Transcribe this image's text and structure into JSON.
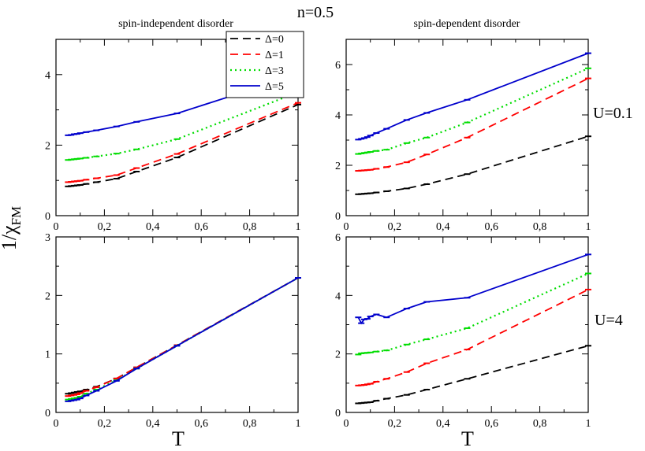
{
  "figure": {
    "top_title": "n=0.5",
    "column_titles": [
      "spin-independent disorder",
      "spin-dependent disorder"
    ],
    "row_labels": [
      "U=0.1",
      "U=4"
    ],
    "ylabel_main": "1/χ",
    "ylabel_sub": "FM",
    "xlabel": "T"
  },
  "colors": {
    "Δ=0": "#000000",
    "Δ=1": "#ff0000",
    "Δ=3": "#00dd00",
    "Δ=5": "#0000cc"
  },
  "chart_data": [
    {
      "type": "line",
      "panel": "top-left",
      "title": "spin-independent disorder",
      "xlim": [
        0,
        1
      ],
      "ylim": [
        0,
        5
      ],
      "xticks": [
        0,
        0.2,
        0.4,
        0.6,
        0.8,
        1
      ],
      "xtick_labels": [
        "0",
        "0,2",
        "0,4",
        "0,6",
        "0,8",
        "1"
      ],
      "yticks": [
        0,
        2,
        4
      ],
      "ytick_labels": [
        "0",
        "2",
        "4"
      ],
      "grid": false,
      "legend": {
        "placement": "top-right",
        "entries": [
          "Δ=0",
          "Δ=1",
          "Δ=3",
          "Δ=5"
        ]
      },
      "series": [
        {
          "name": "Δ=0",
          "style": "dashed",
          "x": [
            0.05,
            0.0625,
            0.075,
            0.0875,
            0.1,
            0.125,
            0.167,
            0.25,
            0.333,
            0.5,
            1.0
          ],
          "y": [
            0.83,
            0.84,
            0.85,
            0.86,
            0.87,
            0.9,
            0.95,
            1.05,
            1.25,
            1.65,
            3.15
          ]
        },
        {
          "name": "Δ=1",
          "style": "dashed",
          "x": [
            0.05,
            0.0625,
            0.075,
            0.0875,
            0.1,
            0.125,
            0.167,
            0.25,
            0.333,
            0.5,
            1.0
          ],
          "y": [
            0.95,
            0.96,
            0.97,
            0.98,
            0.99,
            1.02,
            1.06,
            1.15,
            1.35,
            1.75,
            3.2
          ]
        },
        {
          "name": "Δ=3",
          "style": "dotted",
          "x": [
            0.05,
            0.0625,
            0.075,
            0.0875,
            0.1,
            0.125,
            0.167,
            0.25,
            0.333,
            0.5,
            1.0
          ],
          "y": [
            1.58,
            1.59,
            1.6,
            1.61,
            1.62,
            1.64,
            1.68,
            1.76,
            1.88,
            2.17,
            3.5
          ]
        },
        {
          "name": "Δ=5",
          "style": "solid",
          "x": [
            0.05,
            0.0625,
            0.075,
            0.0875,
            0.1,
            0.125,
            0.167,
            0.25,
            0.333,
            0.5,
            1.0
          ],
          "y": [
            2.28,
            2.29,
            2.31,
            2.32,
            2.34,
            2.37,
            2.42,
            2.53,
            2.66,
            2.9,
            4.0
          ]
        }
      ]
    },
    {
      "type": "line",
      "panel": "top-right",
      "title": "spin-dependent disorder",
      "xlim": [
        0,
        1
      ],
      "ylim": [
        0,
        7
      ],
      "xticks": [
        0,
        0.2,
        0.4,
        0.6,
        0.8,
        1
      ],
      "xtick_labels": [
        "0",
        "0,2",
        "0,4",
        "0,6",
        "0,8",
        "1"
      ],
      "yticks": [
        0,
        2,
        4,
        6
      ],
      "ytick_labels": [
        "0",
        "2",
        "4",
        "6"
      ],
      "grid": false,
      "row_label": "U=0.1",
      "series": [
        {
          "name": "Δ=0",
          "style": "dashed",
          "x": [
            0.05,
            0.0625,
            0.075,
            0.0875,
            0.1,
            0.125,
            0.167,
            0.25,
            0.333,
            0.5,
            1.0
          ],
          "y": [
            0.85,
            0.86,
            0.87,
            0.88,
            0.89,
            0.92,
            0.97,
            1.08,
            1.25,
            1.65,
            3.15
          ]
        },
        {
          "name": "Δ=1",
          "style": "dashed",
          "x": [
            0.05,
            0.0625,
            0.075,
            0.0875,
            0.1,
            0.125,
            0.167,
            0.25,
            0.333,
            0.5,
            1.0
          ],
          "y": [
            1.78,
            1.79,
            1.8,
            1.81,
            1.82,
            1.86,
            1.93,
            2.12,
            2.43,
            3.1,
            5.45
          ]
        },
        {
          "name": "Δ=3",
          "style": "dotted",
          "x": [
            0.05,
            0.0625,
            0.075,
            0.0875,
            0.1,
            0.125,
            0.167,
            0.25,
            0.333,
            0.5,
            1.0
          ],
          "y": [
            2.45,
            2.47,
            2.49,
            2.51,
            2.53,
            2.57,
            2.62,
            2.88,
            3.1,
            3.7,
            5.85
          ]
        },
        {
          "name": "Δ=5",
          "style": "solid",
          "x": [
            0.05,
            0.0625,
            0.075,
            0.0875,
            0.1,
            0.125,
            0.167,
            0.25,
            0.333,
            0.5,
            1.0
          ],
          "y": [
            3.02,
            3.05,
            3.08,
            3.12,
            3.18,
            3.28,
            3.45,
            3.8,
            4.08,
            4.6,
            6.45
          ]
        }
      ]
    },
    {
      "type": "line",
      "panel": "bottom-left",
      "xlim": [
        0,
        1
      ],
      "ylim": [
        0,
        3
      ],
      "xticks": [
        0,
        0.2,
        0.4,
        0.6,
        0.8,
        1
      ],
      "xtick_labels": [
        "0",
        "0,2",
        "0,4",
        "0,6",
        "0,8",
        "1"
      ],
      "yticks": [
        0,
        1,
        2,
        3
      ],
      "ytick_labels": [
        "0",
        "1",
        "2",
        "3"
      ],
      "grid": false,
      "series": [
        {
          "name": "Δ=0",
          "style": "dashed",
          "x": [
            0.05,
            0.0625,
            0.075,
            0.0875,
            0.1,
            0.125,
            0.167,
            0.25,
            0.333,
            0.5,
            1.0
          ],
          "y": [
            0.32,
            0.33,
            0.34,
            0.35,
            0.36,
            0.39,
            0.44,
            0.58,
            0.77,
            1.15,
            2.3
          ]
        },
        {
          "name": "Δ=1",
          "style": "dashed",
          "x": [
            0.05,
            0.0625,
            0.075,
            0.0875,
            0.1,
            0.125,
            0.167,
            0.25,
            0.333,
            0.5,
            1.0
          ],
          "y": [
            0.28,
            0.29,
            0.3,
            0.31,
            0.33,
            0.37,
            0.43,
            0.58,
            0.77,
            1.15,
            2.3
          ]
        },
        {
          "name": "Δ=3",
          "style": "dotted",
          "x": [
            0.05,
            0.0625,
            0.075,
            0.0875,
            0.1,
            0.125,
            0.167,
            0.25,
            0.333,
            0.5,
            1.0
          ],
          "y": [
            0.22,
            0.23,
            0.24,
            0.25,
            0.27,
            0.32,
            0.39,
            0.55,
            0.75,
            1.14,
            2.3
          ]
        },
        {
          "name": "Δ=5",
          "style": "solid",
          "x": [
            0.05,
            0.0625,
            0.075,
            0.0875,
            0.1,
            0.125,
            0.167,
            0.25,
            0.333,
            0.5,
            1.0
          ],
          "y": [
            0.19,
            0.2,
            0.21,
            0.22,
            0.24,
            0.29,
            0.37,
            0.54,
            0.75,
            1.14,
            2.3
          ]
        }
      ]
    },
    {
      "type": "line",
      "panel": "bottom-right",
      "xlim": [
        0,
        1
      ],
      "ylim": [
        0,
        6
      ],
      "xticks": [
        0,
        0.2,
        0.4,
        0.6,
        0.8,
        1
      ],
      "xtick_labels": [
        "0",
        "0,2",
        "0,4",
        "0,6",
        "0,8",
        "1"
      ],
      "yticks": [
        0,
        2,
        4,
        6
      ],
      "ytick_labels": [
        "0",
        "2",
        "4",
        "6"
      ],
      "grid": false,
      "row_label": "U=4",
      "series": [
        {
          "name": "Δ=0",
          "style": "dashed",
          "x": [
            0.05,
            0.0625,
            0.075,
            0.0875,
            0.1,
            0.125,
            0.167,
            0.25,
            0.333,
            0.5,
            1.0
          ],
          "y": [
            0.31,
            0.32,
            0.33,
            0.34,
            0.35,
            0.4,
            0.47,
            0.6,
            0.78,
            1.15,
            2.28
          ]
        },
        {
          "name": "Δ=1",
          "style": "dashed",
          "x": [
            0.05,
            0.0625,
            0.075,
            0.0875,
            0.1,
            0.125,
            0.167,
            0.25,
            0.333,
            0.5,
            1.0
          ],
          "y": [
            0.92,
            0.93,
            0.94,
            0.96,
            0.98,
            1.05,
            1.15,
            1.38,
            1.68,
            2.15,
            4.2
          ]
        },
        {
          "name": "Δ=3",
          "style": "dotted",
          "x": [
            0.05,
            0.0625,
            0.075,
            0.0875,
            0.1,
            0.125,
            0.167,
            0.25,
            0.333,
            0.5,
            1.0
          ],
          "y": [
            1.98,
            2.02,
            2.03,
            2.04,
            2.05,
            2.08,
            2.12,
            2.32,
            2.5,
            2.88,
            4.75
          ]
        },
        {
          "name": "Δ=5",
          "style": "solid",
          "x": [
            0.05,
            0.0625,
            0.075,
            0.0875,
            0.1,
            0.125,
            0.167,
            0.25,
            0.333,
            0.5,
            1.0
          ],
          "y": [
            3.25,
            3.05,
            3.18,
            3.2,
            3.28,
            3.35,
            3.25,
            3.55,
            3.78,
            3.92,
            5.4
          ]
        }
      ]
    }
  ]
}
